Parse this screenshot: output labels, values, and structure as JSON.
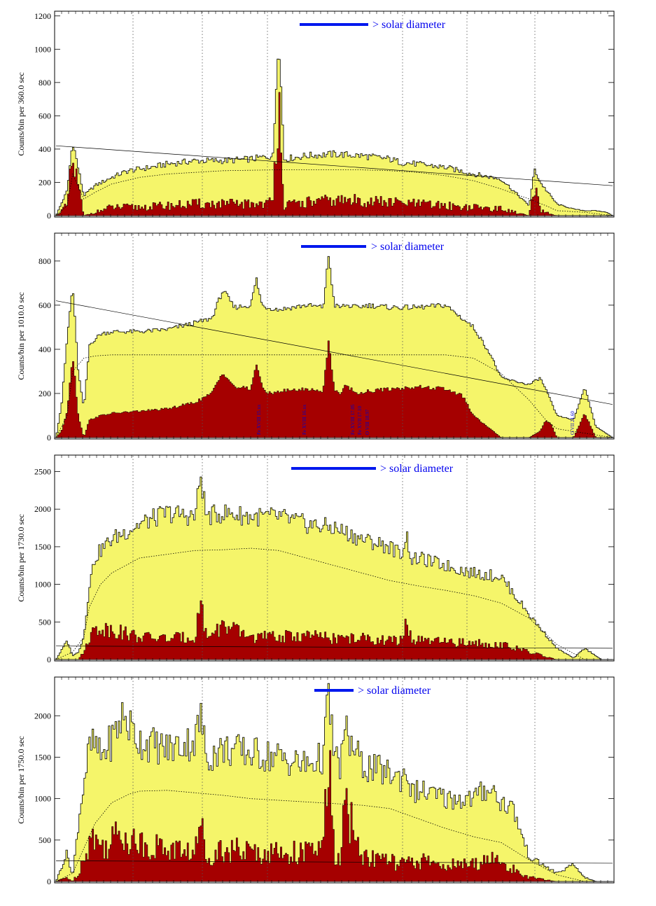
{
  "colors": {
    "total_fill": "#f5f56a",
    "component_fill": "#a50000",
    "outline": "#000000",
    "bar": "#0018ee",
    "grid": "#555555",
    "annotation": "#0000cc"
  },
  "chart_data": [
    {
      "type": "area",
      "ylabel": "Counts/bin per    360.0 sec",
      "bar_label": "> solar diameter",
      "yticks": [
        "0",
        "200",
        "400",
        "600",
        "800",
        "1000",
        "1200"
      ],
      "ylim": [
        0,
        1220
      ],
      "grid": "vertical dotted",
      "series": [
        {
          "name": "",
          "role": "total",
          "x": [
            0,
            2,
            3,
            5,
            7,
            10,
            13,
            17,
            20,
            25,
            30,
            35,
            39,
            40,
            41,
            45,
            50,
            55,
            60,
            62,
            65,
            70,
            75,
            80,
            85,
            86,
            87,
            90,
            93,
            95,
            97,
            99,
            100
          ],
          "values": [
            0,
            150,
            450,
            120,
            180,
            230,
            270,
            290,
            310,
            330,
            330,
            340,
            360,
            1110,
            340,
            360,
            370,
            360,
            340,
            320,
            310,
            290,
            250,
            220,
            60,
            280,
            200,
            70,
            40,
            30,
            30,
            20,
            0
          ]
        },
        {
          "name": "",
          "role": "component",
          "x": [
            0,
            2,
            3,
            5,
            7,
            10,
            15,
            20,
            25,
            30,
            35,
            39,
            40,
            41,
            45,
            50,
            55,
            60,
            65,
            70,
            75,
            80,
            85,
            86,
            87,
            90,
            95,
            100
          ],
          "values": [
            0,
            60,
            330,
            0,
            20,
            50,
            50,
            60,
            70,
            70,
            70,
            80,
            840,
            60,
            80,
            90,
            90,
            80,
            70,
            60,
            50,
            40,
            0,
            160,
            30,
            0,
            0,
            0
          ]
        },
        {
          "name": "",
          "role": "model",
          "x": [
            0,
            2,
            3,
            5,
            7,
            10,
            15,
            20,
            25,
            30,
            39,
            45,
            55,
            60,
            65,
            70,
            75,
            80,
            85,
            88,
            90,
            95,
            100
          ],
          "values": [
            0,
            60,
            250,
            100,
            140,
            190,
            230,
            250,
            260,
            270,
            275,
            275,
            275,
            270,
            260,
            240,
            210,
            160,
            100,
            60,
            30,
            20,
            0
          ]
        },
        {
          "name": "",
          "role": "background",
          "x": [
            0,
            100
          ],
          "values": [
            420,
            180
          ]
        }
      ],
      "annotations": []
    },
    {
      "type": "area",
      "ylabel": "Counts/bin per  1010.0 sec",
      "bar_label": "> solar diameter",
      "yticks": [
        "0",
        "200",
        "400",
        "600",
        "800"
      ],
      "ylim": [
        0,
        920
      ],
      "grid": "vertical dotted",
      "series": [
        {
          "name": "",
          "role": "total",
          "x": [
            0,
            1,
            2,
            3,
            4,
            5,
            6,
            8,
            10,
            15,
            20,
            25,
            28,
            30,
            32,
            35,
            36,
            37,
            38,
            40,
            45,
            48,
            49,
            50,
            51,
            52,
            54,
            56,
            60,
            65,
            70,
            73,
            75,
            78,
            80,
            85,
            87,
            88,
            90,
            93,
            95,
            97,
            100
          ],
          "values": [
            0,
            150,
            450,
            690,
            300,
            130,
            420,
            470,
            480,
            480,
            490,
            520,
            540,
            670,
            590,
            600,
            720,
            600,
            590,
            580,
            600,
            590,
            830,
            600,
            590,
            600,
            590,
            600,
            590,
            590,
            600,
            540,
            500,
            380,
            270,
            240,
            270,
            220,
            100,
            80,
            230,
            50,
            0
          ]
        },
        {
          "name": "",
          "role": "component",
          "x": [
            0,
            1,
            2,
            3,
            4,
            5,
            6,
            8,
            10,
            15,
            20,
            25,
            28,
            30,
            32,
            35,
            36,
            37,
            38,
            40,
            45,
            48,
            49,
            50,
            51,
            52,
            54,
            56,
            60,
            65,
            70,
            73,
            75,
            78,
            80,
            85,
            87,
            88,
            89,
            90,
            93,
            95,
            97,
            100
          ],
          "values": [
            0,
            30,
            120,
            380,
            100,
            0,
            80,
            100,
            110,
            120,
            130,
            160,
            200,
            300,
            230,
            220,
            340,
            230,
            200,
            210,
            220,
            210,
            450,
            210,
            200,
            240,
            200,
            210,
            220,
            230,
            220,
            190,
            100,
            40,
            0,
            0,
            30,
            80,
            60,
            0,
            0,
            110,
            0,
            0
          ]
        },
        {
          "name": "",
          "role": "model",
          "x": [
            0,
            2,
            3,
            5,
            7,
            10,
            15,
            20,
            30,
            40,
            50,
            60,
            70,
            75,
            80,
            85,
            88,
            90,
            95,
            100
          ],
          "values": [
            0,
            100,
            300,
            360,
            370,
            375,
            375,
            375,
            375,
            375,
            375,
            375,
            375,
            360,
            290,
            170,
            80,
            40,
            20,
            0
          ]
        },
        {
          "name": "",
          "role": "background",
          "x": [
            0,
            100
          ],
          "values": [
            620,
            150
          ]
        }
      ],
      "annotations": [
        "Fe XVIII 15.xx",
        "Fe XVIII 16.xx",
        "Fe XVIII 17.05",
        "Fe XVII 17.10",
        "O VIII 18.97",
        "O VII 21.60"
      ]
    },
    {
      "type": "area",
      "ylabel": "Counts/bin per  1730.0 sec",
      "bar_label": "> solar diameter",
      "yticks": [
        "0",
        "500",
        "1000",
        "1500",
        "2000",
        "2500"
      ],
      "ylim": [
        0,
        2700
      ],
      "grid": "vertical dotted",
      "series": [
        {
          "name": "",
          "role": "total",
          "x": [
            0,
            2,
            3,
            4,
            5,
            6,
            7,
            8,
            10,
            15,
            20,
            25,
            26,
            27,
            30,
            35,
            40,
            45,
            50,
            55,
            60,
            62,
            63,
            64,
            65,
            70,
            75,
            80,
            85,
            90,
            93,
            95,
            98,
            100
          ],
          "values": [
            0,
            250,
            50,
            100,
            300,
            1000,
            1350,
            1450,
            1600,
            1800,
            1950,
            1900,
            2460,
            1900,
            1950,
            1900,
            1900,
            1800,
            1750,
            1600,
            1500,
            1400,
            1650,
            1300,
            1350,
            1250,
            1150,
            1100,
            600,
            150,
            20,
            150,
            0,
            0
          ]
        },
        {
          "name": "",
          "role": "component",
          "x": [
            0,
            2,
            3,
            4,
            5,
            6,
            7,
            8,
            10,
            15,
            20,
            25,
            26,
            27,
            30,
            35,
            40,
            45,
            50,
            55,
            60,
            62,
            63,
            64,
            65,
            70,
            75,
            80,
            85,
            90,
            95,
            100
          ],
          "values": [
            0,
            0,
            0,
            0,
            100,
            300,
            400,
            420,
            400,
            300,
            280,
            300,
            800,
            300,
            450,
            300,
            300,
            320,
            280,
            280,
            250,
            250,
            500,
            250,
            250,
            230,
            220,
            200,
            100,
            0,
            0,
            0
          ]
        },
        {
          "name": "",
          "role": "model",
          "x": [
            0,
            3,
            5,
            6,
            8,
            10,
            15,
            20,
            25,
            30,
            35,
            40,
            45,
            50,
            55,
            60,
            65,
            70,
            75,
            80,
            85,
            90,
            95,
            100
          ],
          "values": [
            0,
            100,
            300,
            700,
            1000,
            1150,
            1350,
            1400,
            1450,
            1460,
            1480,
            1450,
            1350,
            1250,
            1150,
            1050,
            980,
            920,
            850,
            750,
            550,
            200,
            0,
            0
          ]
        },
        {
          "name": "",
          "role": "background",
          "x": [
            0,
            100
          ],
          "values": [
            180,
            150
          ]
        }
      ],
      "annotations": []
    },
    {
      "type": "area",
      "ylabel": "Counts/bin per  1750.0 sec",
      "bar_label": "> solar diameter",
      "yticks": [
        "0",
        "500",
        "1000",
        "1500",
        "2000"
      ],
      "ylim": [
        0,
        2450
      ],
      "grid": "vertical dotted",
      "series": [
        {
          "name": "",
          "role": "total",
          "x": [
            0,
            2,
            3,
            4,
            5,
            6,
            7,
            8,
            10,
            12,
            15,
            20,
            25,
            26,
            27,
            30,
            35,
            40,
            45,
            48,
            49,
            50,
            51,
            52,
            55,
            60,
            62,
            63,
            64,
            65,
            70,
            75,
            78,
            80,
            82,
            85,
            90,
            93,
            95,
            97,
            100
          ],
          "values": [
            0,
            350,
            50,
            700,
            1200,
            1600,
            1650,
            1500,
            1700,
            2000,
            1700,
            1600,
            1700,
            2000,
            1500,
            1600,
            1550,
            1500,
            1400,
            1500,
            2250,
            1500,
            1400,
            1800,
            1400,
            1300,
            1250,
            1350,
            1050,
            1100,
            1000,
            1000,
            1150,
            950,
            900,
            300,
            100,
            200,
            50,
            0,
            0
          ]
        },
        {
          "name": "",
          "role": "component",
          "x": [
            0,
            2,
            3,
            4,
            5,
            6,
            7,
            8,
            10,
            12,
            15,
            20,
            25,
            26,
            27,
            30,
            35,
            40,
            45,
            48,
            49,
            50,
            51,
            52,
            55,
            60,
            62,
            63,
            64,
            65,
            70,
            75,
            78,
            80,
            82,
            85,
            90,
            95,
            100
          ],
          "values": [
            0,
            50,
            0,
            100,
            300,
            500,
            550,
            400,
            500,
            600,
            450,
            400,
            350,
            700,
            300,
            400,
            350,
            350,
            350,
            400,
            1500,
            300,
            250,
            900,
            300,
            250,
            200,
            250,
            200,
            250,
            200,
            200,
            300,
            200,
            150,
            50,
            0,
            0,
            0
          ]
        },
        {
          "name": "",
          "role": "model",
          "x": [
            0,
            3,
            5,
            7,
            10,
            13,
            15,
            20,
            25,
            30,
            35,
            40,
            45,
            50,
            55,
            60,
            65,
            70,
            75,
            80,
            85,
            90,
            95,
            100
          ],
          "values": [
            0,
            100,
            400,
            700,
            950,
            1050,
            1090,
            1100,
            1070,
            1040,
            1000,
            980,
            960,
            940,
            920,
            880,
            760,
            640,
            540,
            470,
            260,
            80,
            0,
            0
          ]
        },
        {
          "name": "",
          "role": "background",
          "x": [
            0,
            100
          ],
          "values": [
            250,
            220
          ]
        }
      ],
      "annotations": []
    }
  ]
}
